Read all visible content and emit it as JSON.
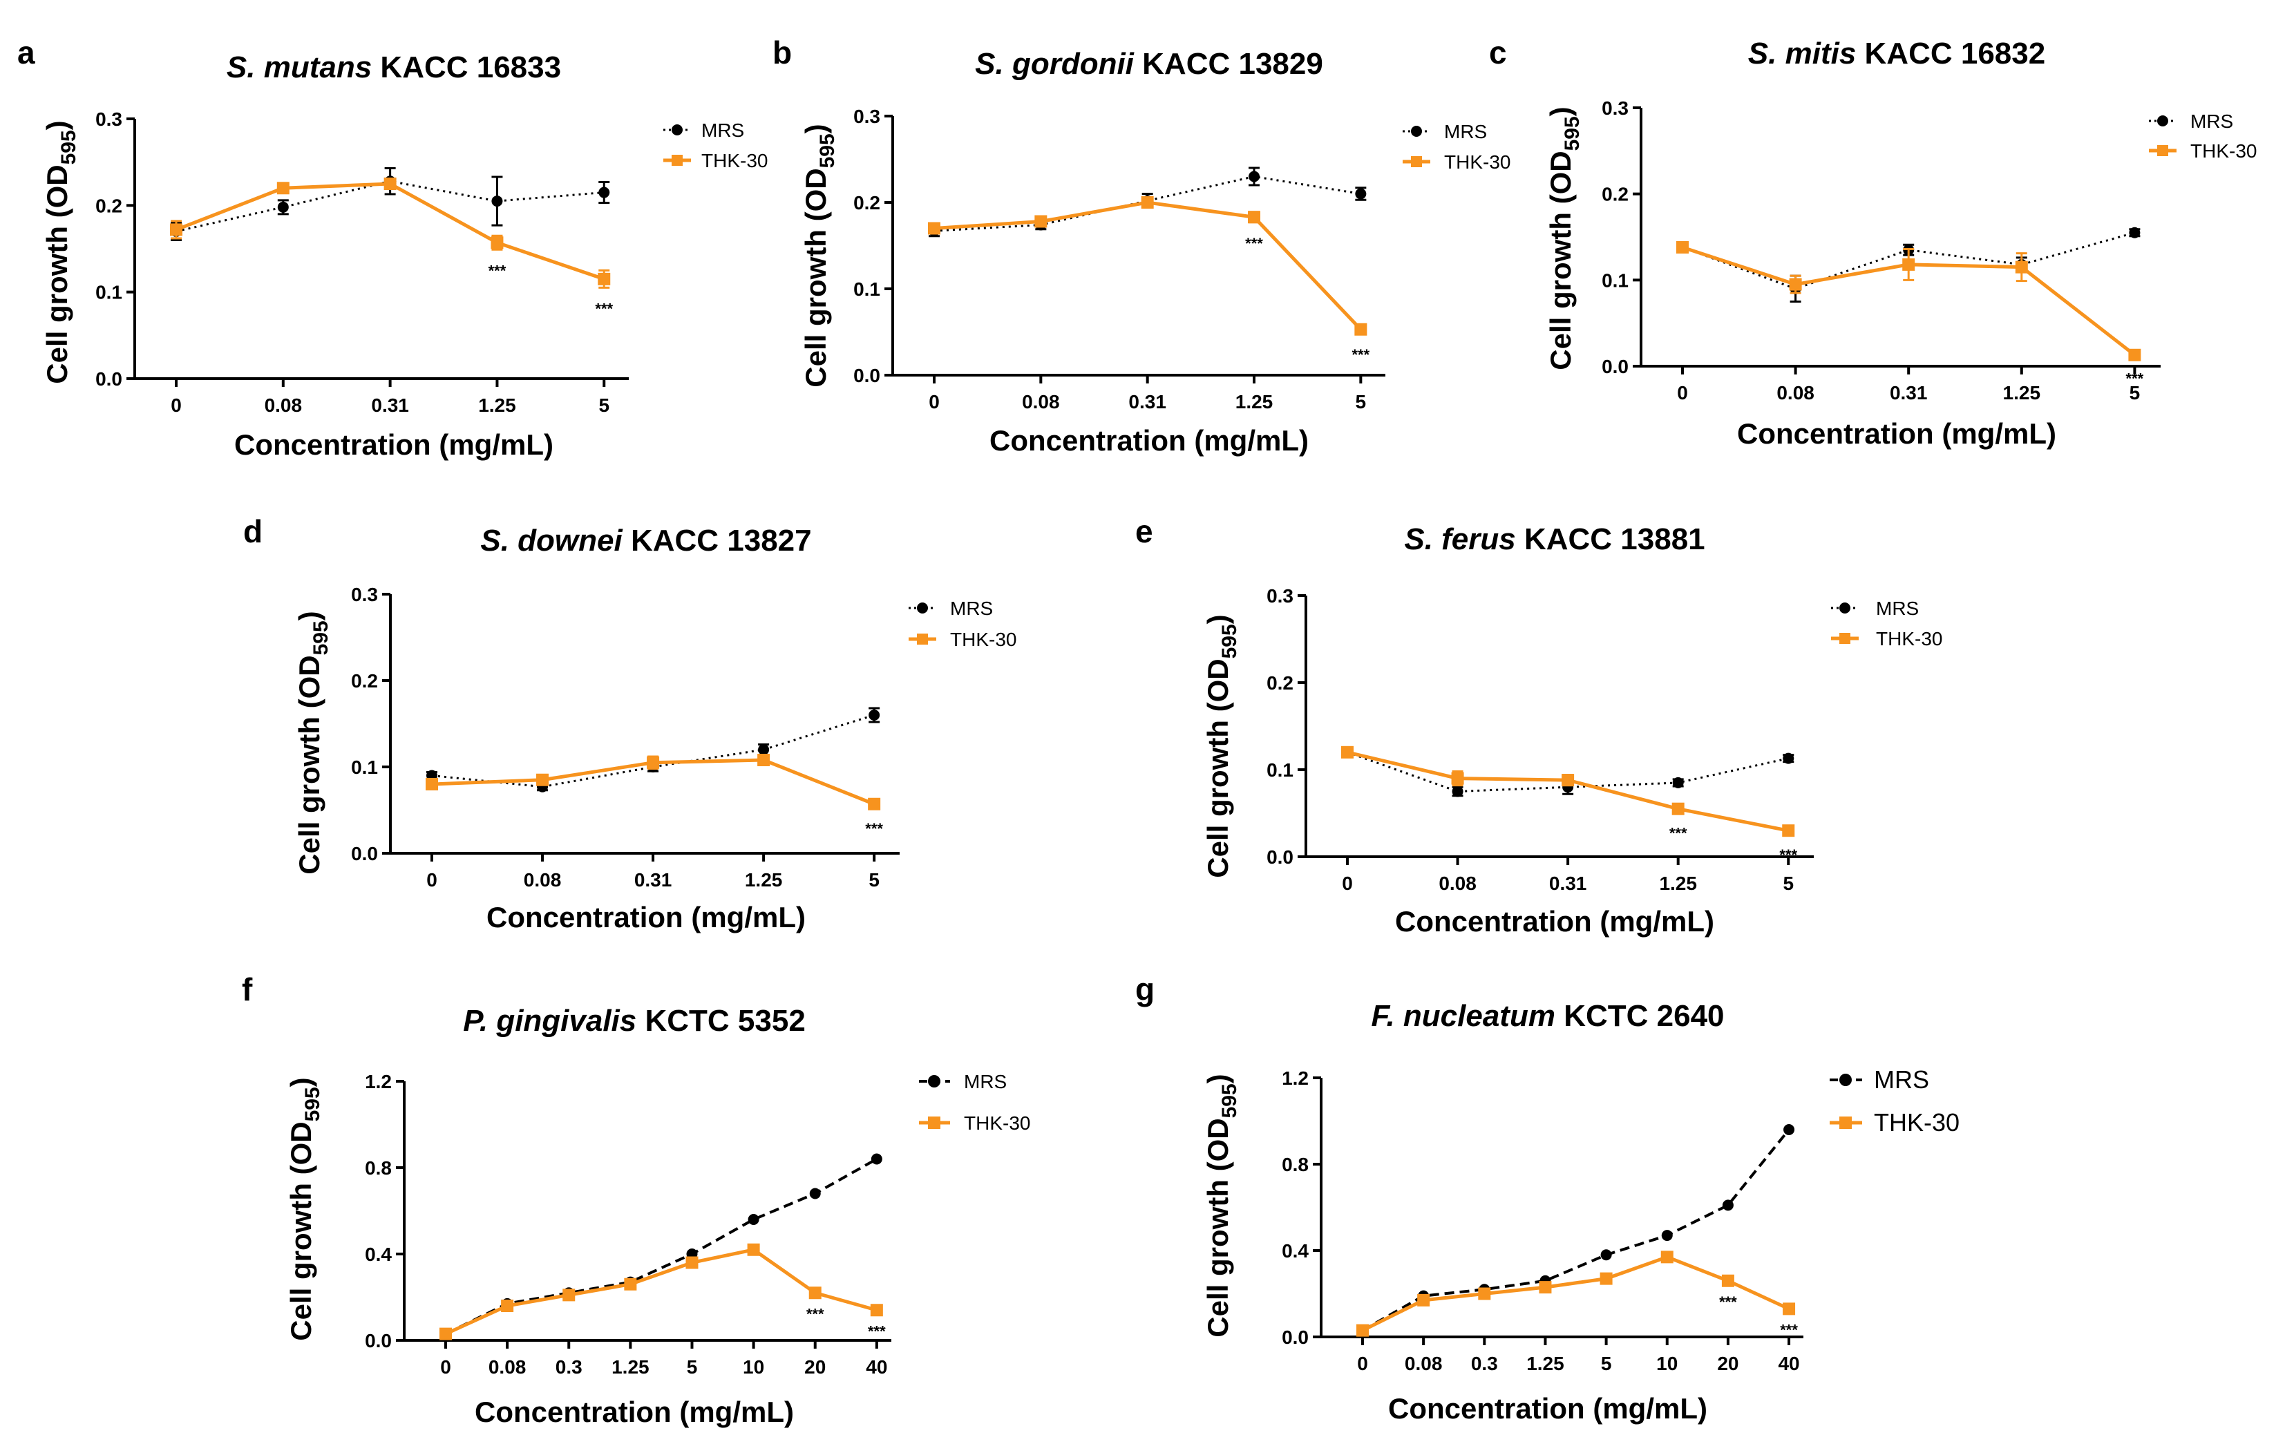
{
  "colors": {
    "mrs": "#000000",
    "thk": "#f7931e"
  },
  "chart_data": [
    {
      "id": "a",
      "type": "line",
      "panel_label": "a",
      "title_italic": "S. mutans",
      "title_rest": " KACC 16833",
      "xlabel": "Concentration (mg/mL)",
      "ylabel_main": "Cell growth (OD",
      "ylabel_sub": "595",
      "ylabel_close": ")",
      "categories": [
        "0",
        "0.08",
        "0.31",
        "1.25",
        "5"
      ],
      "yticks": [
        "0.0",
        "0.1",
        "0.2",
        "0.3"
      ],
      "ylim": [
        0,
        0.3
      ],
      "series": [
        {
          "name": "MRS",
          "style": "dotted",
          "marker": "circle",
          "values": [
            0.17,
            0.198,
            0.228,
            0.205,
            0.215
          ],
          "errors": [
            0.01,
            0.008,
            0.015,
            0.028,
            0.012
          ]
        },
        {
          "name": "THK-30",
          "style": "solid",
          "marker": "square",
          "values": [
            0.172,
            0.22,
            0.225,
            0.157,
            0.115
          ],
          "errors": [
            0.01,
            0.005,
            0.005,
            0.008,
            0.01
          ]
        }
      ],
      "annotations": [
        {
          "index": 3,
          "text": "***"
        },
        {
          "index": 4,
          "text": "***"
        }
      ],
      "legend": [
        "MRS",
        "THK-30"
      ]
    },
    {
      "id": "b",
      "type": "line",
      "panel_label": "b",
      "title_italic": "S. gordonii",
      "title_rest": " KACC 13829",
      "xlabel": "Concentration (mg/mL)",
      "ylabel_main": "Cell growth (OD",
      "ylabel_sub": "595",
      "ylabel_close": ")",
      "categories": [
        "0",
        "0.08",
        "0.31",
        "1.25",
        "5"
      ],
      "yticks": [
        "0.0",
        "0.1",
        "0.2",
        "0.3"
      ],
      "ylim": [
        0,
        0.3
      ],
      "series": [
        {
          "name": "MRS",
          "style": "dotted",
          "marker": "circle",
          "values": [
            0.167,
            0.174,
            0.202,
            0.23,
            0.21
          ],
          "errors": [
            0.006,
            0.005,
            0.008,
            0.01,
            0.007
          ]
        },
        {
          "name": "THK-30",
          "style": "solid",
          "marker": "square",
          "values": [
            0.17,
            0.178,
            0.2,
            0.183,
            0.053
          ],
          "errors": [
            0.004,
            0.004,
            0.006,
            0.006,
            0.005
          ]
        }
      ],
      "annotations": [
        {
          "index": 3,
          "text": "***"
        },
        {
          "index": 4,
          "text": "***"
        }
      ],
      "legend": [
        "MRS",
        "THK-30"
      ]
    },
    {
      "id": "c",
      "type": "line",
      "panel_label": "c",
      "title_italic": "S. mitis",
      "title_rest": " KACC 16832",
      "xlabel": "Concentration (mg/mL)",
      "ylabel_main": "Cell growth (OD",
      "ylabel_sub": "595",
      "ylabel_close": ")",
      "categories": [
        "0",
        "0.08",
        "0.31",
        "1.25",
        "5"
      ],
      "yticks": [
        "0.0",
        "0.1",
        "0.2",
        "0.3"
      ],
      "ylim": [
        0,
        0.3
      ],
      "series": [
        {
          "name": "MRS",
          "style": "dotted",
          "marker": "circle",
          "values": [
            0.138,
            0.09,
            0.135,
            0.118,
            0.155
          ],
          "errors": [
            0.005,
            0.015,
            0.006,
            0.008,
            0.004
          ]
        },
        {
          "name": "THK-30",
          "style": "solid",
          "marker": "square",
          "values": [
            0.138,
            0.095,
            0.118,
            0.115,
            0.013
          ],
          "errors": [
            0.005,
            0.01,
            0.018,
            0.016,
            0.003
          ]
        }
      ],
      "annotations": [
        {
          "index": 4,
          "text": "***"
        }
      ],
      "legend": [
        "MRS",
        "THK-30"
      ]
    },
    {
      "id": "d",
      "type": "line",
      "panel_label": "d",
      "title_italic": "S. downei",
      "title_rest": " KACC 13827",
      "xlabel": "Concentration (mg/mL)",
      "ylabel_main": "Cell growth (OD",
      "ylabel_sub": "595",
      "ylabel_close": ")",
      "categories": [
        "0",
        "0.08",
        "0.31",
        "1.25",
        "5"
      ],
      "yticks": [
        "0.0",
        "0.1",
        "0.2",
        "0.3"
      ],
      "ylim": [
        0,
        0.3
      ],
      "series": [
        {
          "name": "MRS",
          "style": "dotted",
          "marker": "circle",
          "values": [
            0.09,
            0.077,
            0.1,
            0.12,
            0.16
          ],
          "errors": [
            0.004,
            0.004,
            0.005,
            0.006,
            0.008
          ]
        },
        {
          "name": "THK-30",
          "style": "solid",
          "marker": "square",
          "values": [
            0.08,
            0.085,
            0.105,
            0.108,
            0.057
          ],
          "errors": [
            0.004,
            0.004,
            0.007,
            0.005,
            0.004
          ]
        }
      ],
      "annotations": [
        {
          "index": 4,
          "text": "***"
        }
      ],
      "legend": [
        "MRS",
        "THK-30"
      ]
    },
    {
      "id": "e",
      "type": "line",
      "panel_label": "e",
      "title_italic": "S. ferus",
      "title_rest": " KACC 13881",
      "xlabel": "Concentration (mg/mL)",
      "ylabel_main": "Cell growth (OD",
      "ylabel_sub": "595",
      "ylabel_close": ")",
      "categories": [
        "0",
        "0.08",
        "0.31",
        "1.25",
        "5"
      ],
      "yticks": [
        "0.0",
        "0.1",
        "0.2",
        "0.3"
      ],
      "ylim": [
        0,
        0.3
      ],
      "series": [
        {
          "name": "MRS",
          "style": "dotted",
          "marker": "circle",
          "values": [
            0.12,
            0.075,
            0.08,
            0.085,
            0.113
          ],
          "errors": [
            0.004,
            0.005,
            0.008,
            0.004,
            0.004
          ]
        },
        {
          "name": "THK-30",
          "style": "solid",
          "marker": "square",
          "values": [
            0.12,
            0.09,
            0.088,
            0.055,
            0.03
          ],
          "errors": [
            0.004,
            0.008,
            0.006,
            0.004,
            0.004
          ]
        }
      ],
      "annotations": [
        {
          "index": 3,
          "text": "***"
        },
        {
          "index": 4,
          "text": "***"
        }
      ],
      "legend": [
        "MRS",
        "THK-30"
      ]
    },
    {
      "id": "f",
      "type": "line",
      "panel_label": "f",
      "title_italic": "P. gingivalis",
      "title_rest": " KCTC 5352",
      "xlabel": "Concentration (mg/mL)",
      "ylabel_main": "Cell growth (OD",
      "ylabel_sub": "595",
      "ylabel_close": ")",
      "categories": [
        "0",
        "0.08",
        "0.3",
        "1.25",
        "5",
        "10",
        "20",
        "40"
      ],
      "yticks": [
        "0.0",
        "0.4",
        "0.8",
        "1.2"
      ],
      "ylim": [
        0,
        1.2
      ],
      "series": [
        {
          "name": "MRS",
          "style": "dashed",
          "marker": "circle",
          "values": [
            0.03,
            0.17,
            0.22,
            0.27,
            0.4,
            0.56,
            0.68,
            0.84
          ],
          "errors": [
            0,
            0,
            0,
            0,
            0,
            0,
            0,
            0
          ]
        },
        {
          "name": "THK-30",
          "style": "solid",
          "marker": "square",
          "values": [
            0.03,
            0.16,
            0.21,
            0.26,
            0.36,
            0.42,
            0.22,
            0.14
          ],
          "errors": [
            0,
            0,
            0,
            0,
            0,
            0,
            0,
            0
          ]
        }
      ],
      "annotations": [
        {
          "index": 6,
          "text": "***"
        },
        {
          "index": 7,
          "text": "***"
        }
      ],
      "legend": [
        "MRS",
        "THK-30"
      ]
    },
    {
      "id": "g",
      "type": "line",
      "panel_label": "g",
      "title_italic": "F. nucleatum",
      "title_rest": " KCTC 2640",
      "xlabel": "Concentration (mg/mL)",
      "ylabel_main": "Cell growth (OD",
      "ylabel_sub": "595",
      "ylabel_close": ")",
      "categories": [
        "0",
        "0.08",
        "0.3",
        "1.25",
        "5",
        "10",
        "20",
        "40"
      ],
      "yticks": [
        "0.0",
        "0.4",
        "0.8",
        "1.2"
      ],
      "ylim": [
        0,
        1.2
      ],
      "series": [
        {
          "name": "MRS",
          "style": "dashed",
          "marker": "circle",
          "values": [
            0.03,
            0.19,
            0.22,
            0.26,
            0.38,
            0.47,
            0.61,
            0.96
          ],
          "errors": [
            0,
            0,
            0,
            0,
            0,
            0,
            0,
            0
          ]
        },
        {
          "name": "THK-30",
          "style": "solid",
          "marker": "square",
          "values": [
            0.03,
            0.17,
            0.2,
            0.23,
            0.27,
            0.37,
            0.26,
            0.13
          ],
          "errors": [
            0,
            0,
            0,
            0,
            0,
            0,
            0,
            0
          ]
        }
      ],
      "annotations": [
        {
          "index": 6,
          "text": "***"
        },
        {
          "index": 7,
          "text": "***"
        }
      ],
      "legend": [
        "MRS",
        "THK-30"
      ]
    }
  ]
}
